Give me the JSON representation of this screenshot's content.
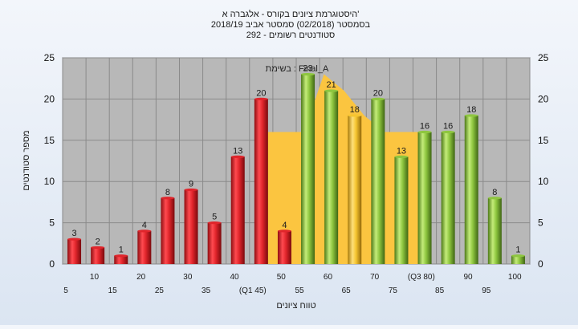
{
  "chart_data": {
    "type": "bar",
    "title_lines": [
      "היסטוגרמת ציונים בקורס - אלגברה א'",
      "בסמסטר  (02/2018)  סמסטר אביב 2018/19",
      "סטודנטים רשומים - 292"
    ],
    "xlabel": "טווח ציונים",
    "ylabel": "מספר סטודנטים",
    "ylim": [
      0,
      25
    ],
    "yticks": [
      0,
      5,
      10,
      15,
      20,
      25
    ],
    "grid": true,
    "legend": "none",
    "annotation": "בשימת : Final_A",
    "categories": [
      "5",
      "10",
      "15",
      "20",
      "25",
      "30",
      "35",
      "40",
      "(Q1 45)",
      "50",
      "55",
      "60",
      "65",
      "70",
      "75",
      "(Q3 80)",
      "85",
      "90",
      "95",
      "100"
    ],
    "values": [
      3,
      2,
      1,
      4,
      8,
      9,
      5,
      13,
      20,
      4,
      23,
      21,
      18,
      20,
      13,
      16,
      16,
      18,
      8,
      1
    ],
    "bar_colors": [
      "red",
      "red",
      "red",
      "red",
      "red",
      "red",
      "red",
      "red",
      "red",
      "red",
      "green",
      "green",
      "orange",
      "green",
      "green",
      "green",
      "green",
      "green",
      "green",
      "green"
    ],
    "band_values": [
      16,
      16,
      16,
      23,
      21,
      18,
      16,
      16,
      16
    ],
    "colors": {
      "red": "#e0252b",
      "green": "#8ec63f",
      "orange": "#f6c530",
      "band": "#fbc540",
      "plot_bg": "#b8b8b8"
    }
  }
}
